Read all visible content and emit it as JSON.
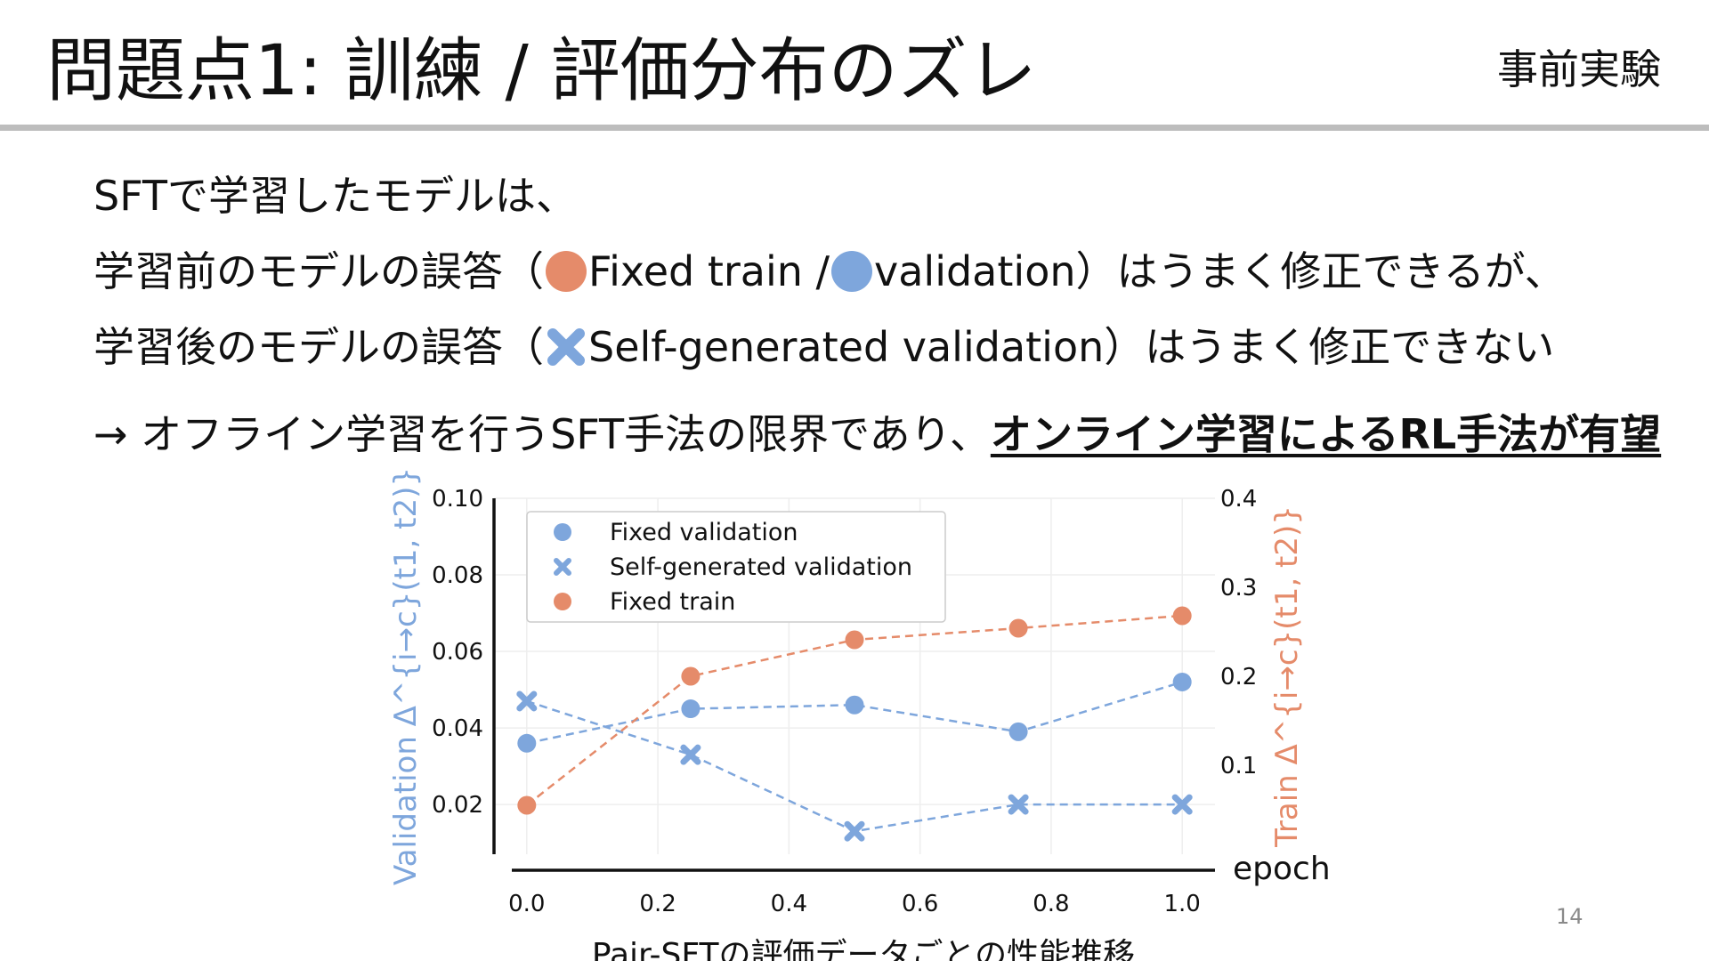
{
  "header": {
    "title": "問題点1: 訓練 / 評価分布のズレ",
    "tag": "事前実験"
  },
  "body": {
    "line1": "SFTで学習したモデルは、",
    "line2_pre": "学習前のモデルの誤答（",
    "line2_a": "Fixed train /",
    "line2_b": "validation）はうまく修正できるが、",
    "line3_pre": "学習後のモデルの誤答（",
    "line3_a": "Self-generated validation）はうまく修正できない",
    "line4_pre": "→ オフライン学習を行うSFT手法の限界であり、",
    "line4_emph": "オンライン学習によるRL手法が有望"
  },
  "colors": {
    "blue": "#7ea6dc",
    "orange": "#e58b6a",
    "legend_border": "#cccccc"
  },
  "page_number": "14",
  "chart_data": {
    "type": "line",
    "x": [
      0.0,
      0.25,
      0.5,
      0.75,
      1.0
    ],
    "xlabel": "epoch",
    "caption": "Pair-SFTの評価データごとの性能推移",
    "xticks": [
      "0.0",
      "0.2",
      "0.4",
      "0.6",
      "0.8",
      "1.0"
    ],
    "xlim": [
      -0.05,
      1.05
    ],
    "left_axis": {
      "label": "Validation Δ^{i→c}(t1, t2)}",
      "ylim": [
        0.007,
        0.1
      ],
      "ticks": [
        "0.02",
        "0.04",
        "0.06",
        "0.08",
        "0.10"
      ]
    },
    "right_axis": {
      "label": "Train Δ^{i→c}(t1, t2)}",
      "ylim": [
        0.0,
        0.4
      ],
      "ticks": [
        "0.1",
        "0.2",
        "0.3",
        "0.4"
      ]
    },
    "series": [
      {
        "name": "Fixed validation",
        "axis": "left",
        "marker": "circle",
        "color": "#7ea6dc",
        "values": [
          0.036,
          0.045,
          0.046,
          0.039,
          0.052
        ]
      },
      {
        "name": "Self-generated validation",
        "axis": "left",
        "marker": "x",
        "color": "#7ea6dc",
        "values": [
          0.047,
          0.033,
          0.013,
          0.02,
          0.02
        ]
      },
      {
        "name": "Fixed train",
        "axis": "right",
        "marker": "circle",
        "color": "#e58b6a",
        "values": [
          0.055,
          0.2,
          0.241,
          0.254,
          0.268
        ]
      }
    ],
    "legend": "top-left",
    "grid": true
  }
}
